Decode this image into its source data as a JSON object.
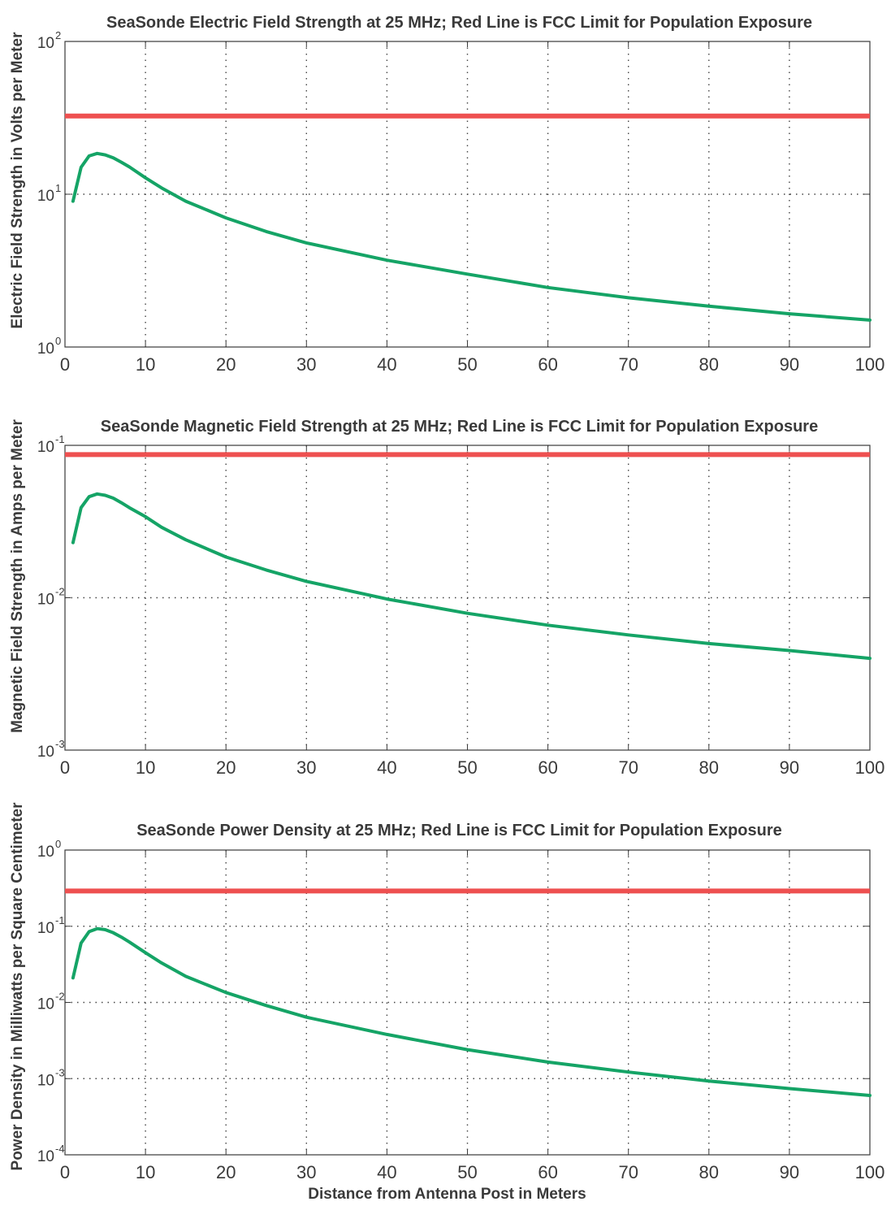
{
  "chart_data": [
    {
      "type": "line",
      "title": "SeaSonde Electric Field Strength at 25 MHz; Red Line is FCC Limit for Population Exposure",
      "xlabel": "",
      "ylabel": "Electric Field Strength in Volts per Meter",
      "xlim": [
        0,
        100
      ],
      "ylim": [
        1,
        100
      ],
      "yscale": "log",
      "grid": true,
      "x_ticks": [
        "0",
        "10",
        "20",
        "30",
        "40",
        "50",
        "60",
        "70",
        "80",
        "90",
        "100"
      ],
      "y_ticks": [
        {
          "base": "10",
          "exp": "0"
        },
        {
          "base": "10",
          "exp": "1"
        },
        {
          "base": "10",
          "exp": "2"
        }
      ],
      "limit_value": 32.5,
      "limit_color": "#ee5050",
      "curve_color": "#15a466",
      "series": [
        {
          "x": [
            1,
            2,
            3,
            4,
            5,
            6,
            7,
            8,
            10,
            12,
            15,
            20,
            25,
            30,
            40,
            50,
            60,
            70,
            80,
            90,
            100
          ],
          "y": [
            9,
            15,
            17.8,
            18.5,
            18.1,
            17.3,
            16.2,
            15.1,
            12.8,
            11.0,
            9.0,
            7.0,
            5.7,
            4.8,
            3.7,
            3.0,
            2.45,
            2.1,
            1.85,
            1.65,
            1.5
          ]
        }
      ]
    },
    {
      "type": "line",
      "title": "SeaSonde Magnetic Field Strength at 25 MHz; Red Line is FCC Limit for Population Exposure",
      "xlabel": "",
      "ylabel": "Magnetic Field Strength in Amps per Meter",
      "xlim": [
        0,
        100
      ],
      "ylim": [
        0.001,
        0.1
      ],
      "yscale": "log",
      "grid": true,
      "x_ticks": [
        "0",
        "10",
        "20",
        "30",
        "40",
        "50",
        "60",
        "70",
        "80",
        "90",
        "100"
      ],
      "y_ticks": [
        {
          "base": "10",
          "exp": "-3"
        },
        {
          "base": "10",
          "exp": "-2"
        },
        {
          "base": "10",
          "exp": "-1"
        }
      ],
      "limit_value": 0.087,
      "limit_color": "#ee5050",
      "curve_color": "#15a466",
      "series": [
        {
          "x": [
            1,
            2,
            3,
            4,
            5,
            6,
            7,
            8,
            10,
            12,
            15,
            20,
            25,
            30,
            40,
            50,
            60,
            70,
            80,
            90,
            100
          ],
          "y": [
            0.023,
            0.039,
            0.046,
            0.048,
            0.047,
            0.045,
            0.042,
            0.039,
            0.034,
            0.029,
            0.024,
            0.0185,
            0.0152,
            0.0128,
            0.0098,
            0.0079,
            0.0066,
            0.0057,
            0.005,
            0.0045,
            0.004
          ]
        }
      ]
    },
    {
      "type": "line",
      "title": "SeaSonde Power Density at 25 MHz; Red Line is FCC Limit for Population Exposure",
      "xlabel": "Distance from Antenna Post in Meters",
      "ylabel": "Power Density in Milliwatts per Square Centimeter",
      "xlim": [
        0,
        100
      ],
      "ylim": [
        0.0001,
        1
      ],
      "yscale": "log",
      "grid": true,
      "x_ticks": [
        "0",
        "10",
        "20",
        "30",
        "40",
        "50",
        "60",
        "70",
        "80",
        "90",
        "100"
      ],
      "y_ticks": [
        {
          "base": "10",
          "exp": "-4"
        },
        {
          "base": "10",
          "exp": "-3"
        },
        {
          "base": "10",
          "exp": "-2"
        },
        {
          "base": "10",
          "exp": "-1"
        },
        {
          "base": "10",
          "exp": "0"
        }
      ],
      "limit_value": 0.29,
      "limit_color": "#ee5050",
      "curve_color": "#15a466",
      "series": [
        {
          "x": [
            1,
            2,
            3,
            4,
            5,
            6,
            7,
            8,
            10,
            12,
            15,
            20,
            25,
            30,
            40,
            50,
            60,
            70,
            80,
            90,
            100
          ],
          "y": [
            0.021,
            0.06,
            0.085,
            0.093,
            0.09,
            0.082,
            0.072,
            0.062,
            0.045,
            0.033,
            0.022,
            0.0135,
            0.0091,
            0.0064,
            0.0038,
            0.0024,
            0.00165,
            0.00122,
            0.00093,
            0.00074,
            0.0006
          ]
        }
      ]
    }
  ]
}
